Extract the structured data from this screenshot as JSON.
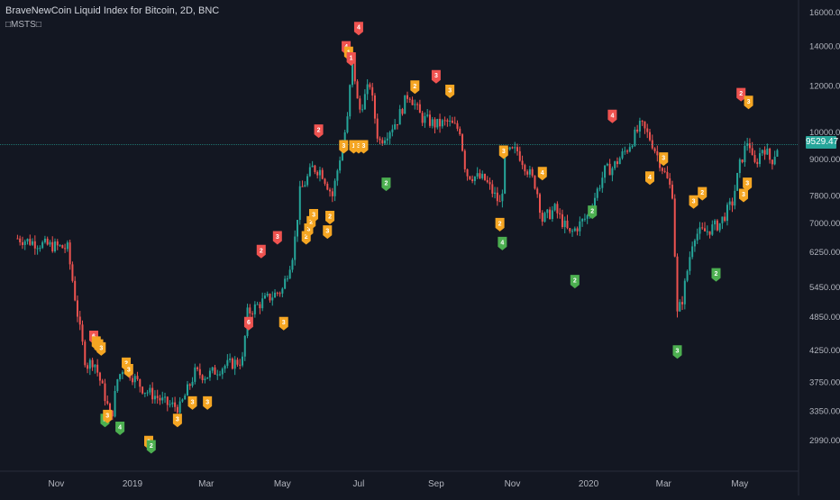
{
  "header": {
    "title": "BraveNewCoin Liquid Index for Bitcoin, 2D, BNC",
    "indicator": "□MSTS□"
  },
  "current_price_label": "9529.47",
  "colors": {
    "background": "#131722",
    "up": "#26a69a",
    "down": "#ef5350",
    "signal_orange": "#f5a623",
    "signal_red": "#ef5350",
    "signal_green": "#4caf50",
    "axis_text": "#b2b5be",
    "price_line": "#26a69a"
  },
  "chart_data": {
    "type": "candlestick",
    "y_scale": "log",
    "ylim": [
      2650,
      16800
    ],
    "y_ticks": [
      "16000.00",
      "14000.00",
      "12000.00",
      "10000.00",
      "9000.00",
      "7800.00",
      "7000.00",
      "6250.00",
      "5450.00",
      "4850.00",
      "4250.00",
      "3750.00",
      "3350.00",
      "2990.00"
    ],
    "x_ticks": [
      "Nov",
      "2019",
      "Mar",
      "May",
      "Jul",
      "Sep",
      "Nov",
      "2020",
      "Mar",
      "May"
    ],
    "last_price": 9529.47,
    "price_path": [
      [
        "2018-10-01",
        6600
      ],
      [
        "2018-10-20",
        6450
      ],
      [
        "2018-11-10",
        6350
      ],
      [
        "2018-11-14",
        5600
      ],
      [
        "2018-11-20",
        4600
      ],
      [
        "2018-11-25",
        4000
      ],
      [
        "2018-12-01",
        4100
      ],
      [
        "2018-12-10",
        3550
      ],
      [
        "2018-12-15",
        3250
      ],
      [
        "2018-12-20",
        3800
      ],
      [
        "2018-12-25",
        4000
      ],
      [
        "2019-01-01",
        3850
      ],
      [
        "2019-01-10",
        3650
      ],
      [
        "2019-01-20",
        3550
      ],
      [
        "2019-01-28",
        3450
      ],
      [
        "2019-02-08",
        3400
      ],
      [
        "2019-02-20",
        3900
      ],
      [
        "2019-03-01",
        3850
      ],
      [
        "2019-03-15",
        4000
      ],
      [
        "2019-03-31",
        4100
      ],
      [
        "2019-04-02",
        4900
      ],
      [
        "2019-04-15",
        5150
      ],
      [
        "2019-05-01",
        5400
      ],
      [
        "2019-05-10",
        6300
      ],
      [
        "2019-05-15",
        7900
      ],
      [
        "2019-05-25",
        8700
      ],
      [
        "2019-06-01",
        8600
      ],
      [
        "2019-06-10",
        7800
      ],
      [
        "2019-06-17",
        9300
      ],
      [
        "2019-06-22",
        10500
      ],
      [
        "2019-06-26",
        13500
      ],
      [
        "2019-07-01",
        10800
      ],
      [
        "2019-07-10",
        12100
      ],
      [
        "2019-07-17",
        9600
      ],
      [
        "2019-08-01",
        10500
      ],
      [
        "2019-08-10",
        11700
      ],
      [
        "2019-08-20",
        10600
      ],
      [
        "2019-09-01",
        10300
      ],
      [
        "2019-09-10",
        10400
      ],
      [
        "2019-09-20",
        10100
      ],
      [
        "2019-09-25",
        8500
      ],
      [
        "2019-10-10",
        8300
      ],
      [
        "2019-10-23",
        7500
      ],
      [
        "2019-10-26",
        9200
      ],
      [
        "2019-11-05",
        9300
      ],
      [
        "2019-11-20",
        8100
      ],
      [
        "2019-11-25",
        7100
      ],
      [
        "2019-12-05",
        7400
      ],
      [
        "2019-12-17",
        6700
      ],
      [
        "2019-12-31",
        7200
      ],
      [
        "2020-01-14",
        8600
      ],
      [
        "2020-01-20",
        8700
      ],
      [
        "2020-02-01",
        9400
      ],
      [
        "2020-02-12",
        10300
      ],
      [
        "2020-02-20",
        9700
      ],
      [
        "2020-03-01",
        8600
      ],
      [
        "2020-03-08",
        7900
      ],
      [
        "2020-03-12",
        4900
      ],
      [
        "2020-03-16",
        5200
      ],
      [
        "2020-03-25",
        6700
      ],
      [
        "2020-04-05",
        6800
      ],
      [
        "2020-04-15",
        7000
      ],
      [
        "2020-04-25",
        7600
      ],
      [
        "2020-05-01",
        8800
      ],
      [
        "2020-05-08",
        9800
      ],
      [
        "2020-05-12",
        8700
      ],
      [
        "2020-05-20",
        9500
      ],
      [
        "2020-05-26",
        8900
      ],
      [
        "2020-06-01",
        9529
      ]
    ],
    "signals": [
      {
        "date": "2018-12-01",
        "price": 4500,
        "color": "red",
        "label": "6",
        "dir": "up"
      },
      {
        "date": "2018-12-03",
        "price": 4400,
        "color": "orange",
        "label": "1",
        "dir": "up"
      },
      {
        "date": "2018-12-05",
        "price": 4350,
        "color": "orange",
        "label": "2",
        "dir": "up"
      },
      {
        "date": "2018-12-07",
        "price": 4300,
        "color": "orange",
        "label": "3",
        "dir": "up"
      },
      {
        "date": "2018-12-27",
        "price": 4050,
        "color": "orange",
        "label": "2",
        "dir": "up"
      },
      {
        "date": "2018-12-29",
        "price": 3950,
        "color": "orange",
        "label": "3",
        "dir": "up"
      },
      {
        "date": "2018-12-10",
        "price": 3250,
        "color": "green",
        "label": "2",
        "dir": "up"
      },
      {
        "date": "2018-12-12",
        "price": 3300,
        "color": "orange",
        "label": "3",
        "dir": "up"
      },
      {
        "date": "2018-12-22",
        "price": 3150,
        "color": "green",
        "label": "4",
        "dir": "up"
      },
      {
        "date": "2019-01-14",
        "price": 2980,
        "color": "orange",
        "label": "2",
        "dir": "up"
      },
      {
        "date": "2019-01-16",
        "price": 2930,
        "color": "green",
        "label": "2",
        "dir": "up"
      },
      {
        "date": "2019-02-06",
        "price": 3250,
        "color": "orange",
        "label": "3",
        "dir": "up"
      },
      {
        "date": "2019-02-18",
        "price": 3480,
        "color": "orange",
        "label": "3",
        "dir": "up"
      },
      {
        "date": "2019-03-02",
        "price": 3480,
        "color": "orange",
        "label": "3",
        "dir": "up"
      },
      {
        "date": "2019-04-04",
        "price": 4750,
        "color": "red",
        "label": "6",
        "dir": "up"
      },
      {
        "date": "2019-04-14",
        "price": 6300,
        "color": "red",
        "label": "2",
        "dir": "up"
      },
      {
        "date": "2019-04-27",
        "price": 6650,
        "color": "red",
        "label": "3",
        "dir": "up"
      },
      {
        "date": "2019-05-02",
        "price": 4750,
        "color": "orange",
        "label": "3",
        "dir": "up"
      },
      {
        "date": "2019-05-20",
        "price": 6650,
        "color": "orange",
        "label": "2",
        "dir": "up"
      },
      {
        "date": "2019-05-22",
        "price": 6850,
        "color": "orange",
        "label": "3",
        "dir": "up"
      },
      {
        "date": "2019-05-24",
        "price": 7050,
        "color": "orange",
        "label": "2",
        "dir": "up"
      },
      {
        "date": "2019-05-26",
        "price": 7250,
        "color": "orange",
        "label": "3",
        "dir": "up"
      },
      {
        "date": "2019-06-06",
        "price": 6800,
        "color": "orange",
        "label": "3",
        "dir": "up"
      },
      {
        "date": "2019-06-08",
        "price": 7200,
        "color": "orange",
        "label": "2",
        "dir": "up"
      },
      {
        "date": "2019-05-30",
        "price": 10100,
        "color": "red",
        "label": "2",
        "dir": "up"
      },
      {
        "date": "2019-06-21",
        "price": 14000,
        "color": "red",
        "label": "4",
        "dir": "up"
      },
      {
        "date": "2019-06-23",
        "price": 13700,
        "color": "orange",
        "label": "1",
        "dir": "up"
      },
      {
        "date": "2019-06-25",
        "price": 13400,
        "color": "red",
        "label": "1",
        "dir": "up"
      },
      {
        "date": "2019-07-01",
        "price": 15100,
        "color": "red",
        "label": "4",
        "dir": "up"
      },
      {
        "date": "2019-06-19",
        "price": 9500,
        "color": "orange",
        "label": "3",
        "dir": "up"
      },
      {
        "date": "2019-06-27",
        "price": 9500,
        "color": "orange",
        "label": "1",
        "dir": "up"
      },
      {
        "date": "2019-07-01",
        "price": 9500,
        "color": "orange",
        "label": "3",
        "dir": "up"
      },
      {
        "date": "2019-07-05",
        "price": 9500,
        "color": "orange",
        "label": "3",
        "dir": "up"
      },
      {
        "date": "2019-07-23",
        "price": 8200,
        "color": "green",
        "label": "2",
        "dir": "up"
      },
      {
        "date": "2019-08-15",
        "price": 12000,
        "color": "orange",
        "label": "2",
        "dir": "up"
      },
      {
        "date": "2019-09-01",
        "price": 12500,
        "color": "red",
        "label": "3",
        "dir": "up"
      },
      {
        "date": "2019-09-12",
        "price": 11800,
        "color": "orange",
        "label": "3",
        "dir": "up"
      },
      {
        "date": "2019-10-25",
        "price": 9300,
        "color": "orange",
        "label": "3",
        "dir": "up"
      },
      {
        "date": "2019-10-22",
        "price": 7000,
        "color": "orange",
        "label": "2",
        "dir": "up"
      },
      {
        "date": "2019-10-24",
        "price": 6500,
        "color": "green",
        "label": "4",
        "dir": "up"
      },
      {
        "date": "2019-11-25",
        "price": 8550,
        "color": "orange",
        "label": "4",
        "dir": "up"
      },
      {
        "date": "2019-12-21",
        "price": 5600,
        "color": "green",
        "label": "2",
        "dir": "up"
      },
      {
        "date": "2020-01-04",
        "price": 7350,
        "color": "green",
        "label": "2",
        "dir": "up"
      },
      {
        "date": "2020-01-20",
        "price": 10700,
        "color": "red",
        "label": "4",
        "dir": "up"
      },
      {
        "date": "2020-02-19",
        "price": 8400,
        "color": "orange",
        "label": "4",
        "dir": "up"
      },
      {
        "date": "2020-03-01",
        "price": 9050,
        "color": "orange",
        "label": "3",
        "dir": "up"
      },
      {
        "date": "2020-03-12",
        "price": 4250,
        "color": "green",
        "label": "3",
        "dir": "up"
      },
      {
        "date": "2020-03-25",
        "price": 7650,
        "color": "orange",
        "label": "3",
        "dir": "up"
      },
      {
        "date": "2020-04-01",
        "price": 7900,
        "color": "orange",
        "label": "2",
        "dir": "up"
      },
      {
        "date": "2020-04-12",
        "price": 5750,
        "color": "green",
        "label": "2",
        "dir": "up"
      },
      {
        "date": "2020-05-02",
        "price": 11650,
        "color": "red",
        "label": "2",
        "dir": "up"
      },
      {
        "date": "2020-05-08",
        "price": 11300,
        "color": "orange",
        "label": "3",
        "dir": "up"
      },
      {
        "date": "2020-05-04",
        "price": 7850,
        "color": "orange",
        "label": "3",
        "dir": "up"
      },
      {
        "date": "2020-05-07",
        "price": 8200,
        "color": "orange",
        "label": "3",
        "dir": "up"
      }
    ]
  }
}
